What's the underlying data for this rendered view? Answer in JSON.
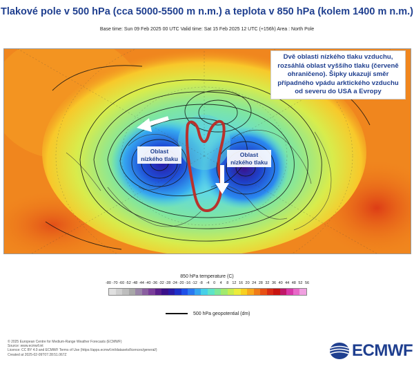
{
  "header": {
    "title": "Tlakové pole v 500 hPa (cca 5000-5500 m n.m.) a teplota v 850 hPa (kolem 1400 m n.m.)",
    "subtitle": "Base time: Sun 09 Feb 2025 00 UTC Valid time: Sat 15 Feb 2025 12 UTC (+156h) Area : North Pole"
  },
  "map": {
    "annotation": "Dvě oblasti nízkého tlaku vzduchu, rozsáhlá oblast vyššího tlaku (červeně ohraničeno). Šipky ukazují směr případného vpádu arktického vzduchu od severu do USA a Evropy",
    "low_left": "Oblast nízkého tlaku",
    "low_right": "Oblast nízkého tlaku",
    "colors": {
      "warm": "#f08a1e",
      "cold": "#1e50d8",
      "highlight": "#b8322c"
    }
  },
  "legend": {
    "title": "850 hPa temperature (C)",
    "ticks": [
      "-80",
      "-70",
      "-60",
      "-52",
      "-48",
      "-44",
      "-40",
      "-36",
      "-32",
      "-28",
      "-24",
      "-20",
      "-16",
      "-12",
      "-8",
      "-4",
      "0",
      "4",
      "8",
      "12",
      "16",
      "20",
      "24",
      "28",
      "32",
      "36",
      "40",
      "44",
      "48",
      "52",
      "56"
    ],
    "colors": [
      "#e0e0e0",
      "#cfcfcf",
      "#bdbdbd",
      "#a8a8a8",
      "#9a86a8",
      "#8a5fa0",
      "#7a3d9a",
      "#5a1e8c",
      "#3a108a",
      "#2a1aa6",
      "#1e30c8",
      "#1e50e8",
      "#2a78f0",
      "#35a6f0",
      "#46d0e8",
      "#5ee4c8",
      "#7de89a",
      "#a2ea6e",
      "#c8ec4e",
      "#ecec3c",
      "#f8d020",
      "#f8a81c",
      "#f07c18",
      "#e85014",
      "#d82a14",
      "#c81410",
      "#c01868",
      "#d838a8",
      "#e868c8",
      "#f0a0e0"
    ],
    "geopotential_label": "500 hPa geopotential (dm)"
  },
  "footer": {
    "lines": [
      "© 2025 European Centre for Medium-Range Weather Forecasts (ECMWF)",
      "Source: www.ecmwf.int",
      "Licence: CC BY 4.0 and ECMWF Terms of Use (https://apps.ecmwf.int/datasets/licences/general/)",
      "Created at 2025-02-09T07:28:51.067Z"
    ],
    "logo": "ECMWF"
  }
}
